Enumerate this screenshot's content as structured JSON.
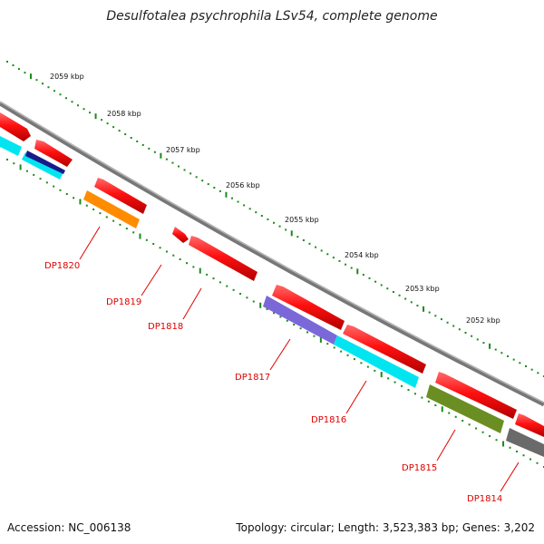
{
  "title": "Desulfotalea psychrophila LSv54, complete genome",
  "accession_text": "Accession: NC_006138",
  "summary_text": "Topology: circular; Length: 3,523,383 bp; Genes: 3,202",
  "colors": {
    "backbone": "#8a8a8a",
    "forward_gene": "#ff1010",
    "tick_green": "#1a8a1a",
    "label_red": "#e00000"
  },
  "scale_labels": [
    "2059 kbp",
    "2058 kbp",
    "2057 kbp",
    "2056 kbp",
    "2055 kbp",
    "2054 kbp",
    "2053 kbp",
    "2052 kbp"
  ],
  "gene_labels": [
    "DP1820",
    "DP1819",
    "DP1818",
    "DP1817",
    "DP1816",
    "DP1815",
    "DP1814"
  ],
  "feature_colors": [
    "#ff1010",
    "#00e5f0",
    "#1a1a8a",
    "#ff8c00",
    "#7b68d8",
    "#6b8e23",
    "#6a6a6a"
  ]
}
